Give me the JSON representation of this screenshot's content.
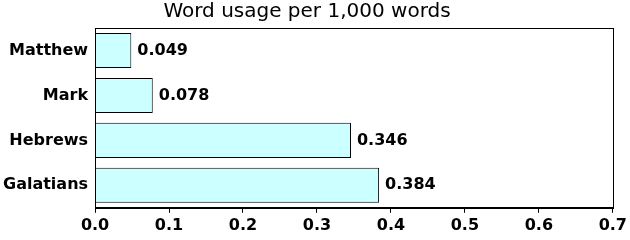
{
  "chart_data": {
    "type": "bar",
    "title": "Word usage per 1,000 words",
    "orientation": "horizontal",
    "categories": [
      "Matthew",
      "Mark",
      "Hebrews",
      "Galatians"
    ],
    "values": [
      0.049,
      0.078,
      0.346,
      0.384
    ],
    "color": "#ccffff",
    "xlim": [
      0,
      0.7
    ],
    "xticks": [
      {
        "value": 0,
        "label": "0.0"
      },
      0.1,
      0.2,
      0.3,
      0.4,
      0.5,
      0.6,
      0.7
    ],
    "grid": false,
    "data_labels": true
  }
}
